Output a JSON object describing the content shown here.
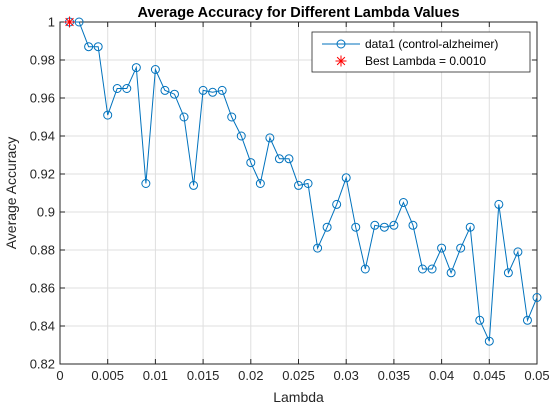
{
  "chart_data": {
    "type": "line",
    "title": "Average Accuracy for Different Lambda Values",
    "xlabel": "Lambda",
    "ylabel": "Average Accuracy",
    "xlim": [
      0,
      0.05
    ],
    "ylim": [
      0.82,
      1.0
    ],
    "x_ticks": [
      0,
      0.005,
      0.01,
      0.015,
      0.02,
      0.025,
      0.03,
      0.035,
      0.04,
      0.045,
      0.05
    ],
    "x_tick_labels": [
      "0",
      "0.005",
      "0.01",
      "0.015",
      "0.02",
      "0.025",
      "0.03",
      "0.035",
      "0.04",
      "0.045",
      "0.05"
    ],
    "y_ticks": [
      0.82,
      0.84,
      0.86,
      0.88,
      0.9,
      0.92,
      0.94,
      0.96,
      0.98,
      1.0
    ],
    "y_tick_labels": [
      "0.82",
      "0.84",
      "0.86",
      "0.88",
      "0.9",
      "0.92",
      "0.94",
      "0.96",
      "0.98",
      "1"
    ],
    "grid": true,
    "legend_location": "top-right",
    "series": [
      {
        "name": "data1 (control-alzheimer)",
        "color": "#0072BD",
        "marker": "circle",
        "x": [
          0.001,
          0.002,
          0.003,
          0.004,
          0.005,
          0.006,
          0.007,
          0.008,
          0.009,
          0.01,
          0.011,
          0.012,
          0.013,
          0.014,
          0.015,
          0.016,
          0.017,
          0.018,
          0.019,
          0.02,
          0.021,
          0.022,
          0.023,
          0.024,
          0.025,
          0.026,
          0.027,
          0.028,
          0.029,
          0.03,
          0.031,
          0.032,
          0.033,
          0.034,
          0.035,
          0.036,
          0.037,
          0.038,
          0.039,
          0.04,
          0.041,
          0.042,
          0.043,
          0.044,
          0.045,
          0.046,
          0.047,
          0.048,
          0.049,
          0.05
        ],
        "y": [
          1.0,
          1.0,
          0.987,
          0.987,
          0.951,
          0.965,
          0.965,
          0.976,
          0.915,
          0.975,
          0.964,
          0.962,
          0.95,
          0.914,
          0.964,
          0.963,
          0.964,
          0.95,
          0.94,
          0.926,
          0.915,
          0.939,
          0.928,
          0.928,
          0.914,
          0.915,
          0.881,
          0.892,
          0.904,
          0.918,
          0.892,
          0.87,
          0.893,
          0.892,
          0.893,
          0.905,
          0.893,
          0.87,
          0.87,
          0.881,
          0.868,
          0.881,
          0.892,
          0.843,
          0.832,
          0.904,
          0.868,
          0.879,
          0.843,
          0.855
        ]
      },
      {
        "name": "Best Lambda = 0.0010",
        "color": "#FF0000",
        "marker": "asterisk",
        "x": [
          0.001
        ],
        "y": [
          1.0
        ]
      }
    ]
  }
}
